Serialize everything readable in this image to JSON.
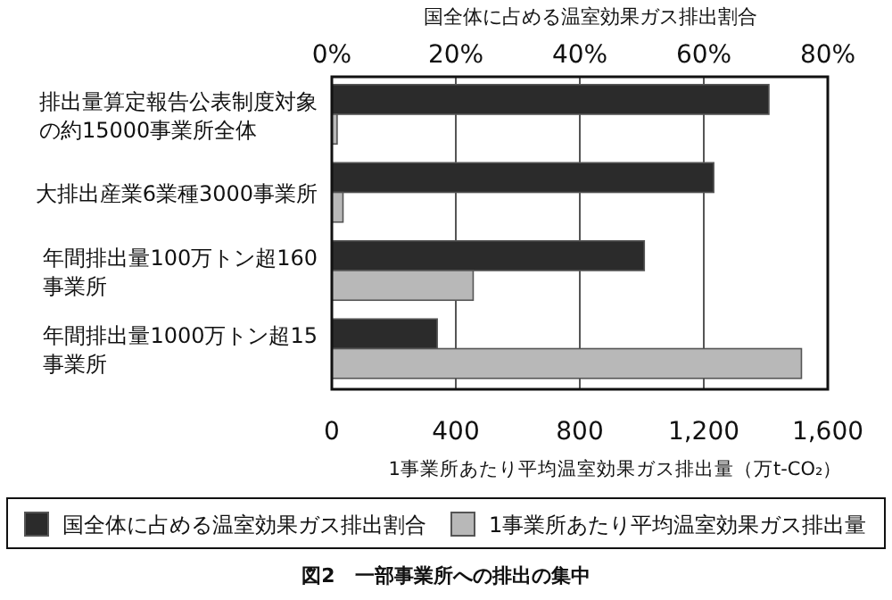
{
  "chart_data": {
    "type": "bar",
    "orientation": "horizontal",
    "categories": [
      "排出量算定報告公表制度対象の約15000事業所全体",
      "大排出産業6業種3000事業所",
      "年間排出量100万トン超160事業所",
      "年間排出量1000万トン超15事業所"
    ],
    "series": [
      {
        "name": "国全体に占める温室効果ガス排出割合",
        "color": "#2b2b2b",
        "axis": "x2",
        "values": [
          70.5,
          61.6,
          50.4,
          17.0
        ]
      },
      {
        "name": "1事業所あたり平均温室効果ガス排出量",
        "color": "#b8b8b8",
        "values": [
          17,
          36,
          456,
          1515
        ]
      }
    ],
    "xlim": [
      0,
      1600
    ],
    "xticks": [
      0,
      400,
      800,
      {
        "value": 1200,
        "label": "1,200"
      },
      {
        "value": 1600,
        "label": "1,600"
      }
    ],
    "x2lim": [
      0,
      80
    ],
    "x2ticks": [
      {
        "value": 0,
        "label": "0%"
      },
      {
        "value": 20,
        "label": "20%"
      },
      {
        "value": 40,
        "label": "40%"
      },
      {
        "value": 60,
        "label": "60%"
      },
      {
        "value": 80,
        "label": "80%"
      }
    ],
    "xlabel": "1事業所あたり平均温室効果ガス排出量（万t-CO₂）",
    "x2label": "国全体に占める温室効果ガス排出割合",
    "grid": "x",
    "legend": "bottom",
    "annotations": [
      "図2　一部事業所への排出の集中"
    ]
  }
}
